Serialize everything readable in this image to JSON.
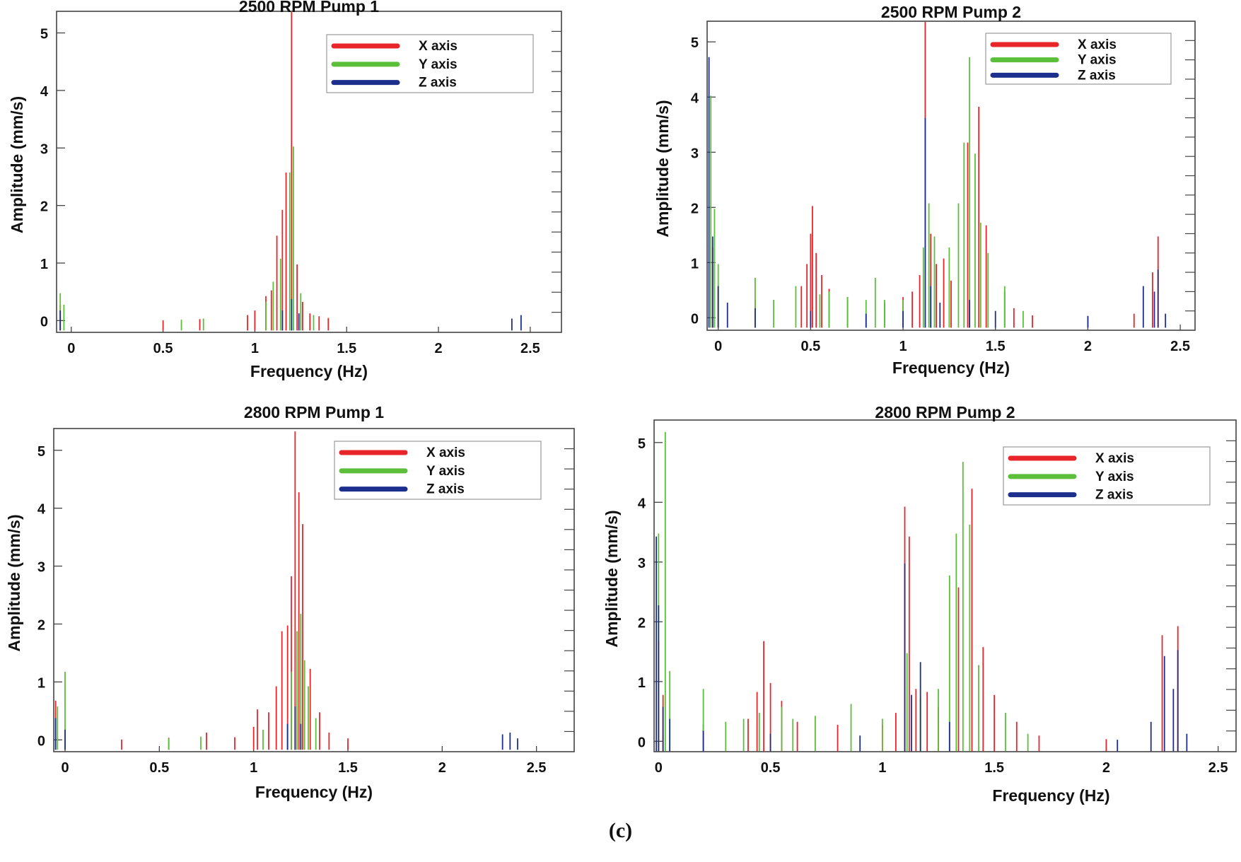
{
  "figure": {
    "caption": "(c)"
  },
  "colors": {
    "x_axis": "#e8262a",
    "y_axis": "#5cbf3a",
    "z_axis": "#1d2f8c",
    "frame": "#444444"
  },
  "chart_data": [
    {
      "type": "bar",
      "title": "2500 RPM Pump 1",
      "xlabel": "Frequency (Hz)",
      "ylabel": "Amplitude (mm/s)",
      "xlim": [
        -0.08,
        2.67
      ],
      "ylim": [
        -0.18,
        5.4
      ],
      "xticks": [
        "0",
        "0.5",
        "1",
        "1.5",
        "2",
        "2.5"
      ],
      "yticks": [
        "0",
        "1",
        "2",
        "3",
        "4",
        "5"
      ],
      "legend": {
        "position": "top-right",
        "entries": [
          "X axis",
          "Y axis",
          "Z axis"
        ]
      },
      "series": [
        {
          "name": "X axis",
          "color": "#e8262a",
          "points": [
            [
              -0.06,
              0.3
            ],
            [
              0.5,
              0.03
            ],
            [
              0.7,
              0.05
            ],
            [
              0.96,
              0.12
            ],
            [
              1.0,
              0.2
            ],
            [
              1.06,
              0.45
            ],
            [
              1.09,
              0.55
            ],
            [
              1.12,
              1.5
            ],
            [
              1.15,
              1.95
            ],
            [
              1.17,
              2.6
            ],
            [
              1.2,
              5.4
            ],
            [
              1.23,
              1.0
            ],
            [
              1.26,
              0.35
            ],
            [
              1.3,
              0.15
            ],
            [
              1.35,
              0.1
            ],
            [
              1.4,
              0.07
            ]
          ]
        },
        {
          "name": "Y axis",
          "color": "#5cbf3a",
          "points": [
            [
              -0.06,
              0.5
            ],
            [
              -0.04,
              0.3
            ],
            [
              0.6,
              0.04
            ],
            [
              0.72,
              0.06
            ],
            [
              1.06,
              0.35
            ],
            [
              1.1,
              0.7
            ],
            [
              1.14,
              1.1
            ],
            [
              1.19,
              2.6
            ],
            [
              1.21,
              3.05
            ],
            [
              1.25,
              0.5
            ],
            [
              1.32,
              0.12
            ]
          ]
        },
        {
          "name": "Z axis",
          "color": "#1d2f8c",
          "points": [
            [
              -0.06,
              0.2
            ],
            [
              1.15,
              0.2
            ],
            [
              1.2,
              0.4
            ],
            [
              1.24,
              0.15
            ],
            [
              2.4,
              0.06
            ],
            [
              2.45,
              0.12
            ]
          ]
        }
      ]
    },
    {
      "type": "bar",
      "title": "2500 RPM Pump 2",
      "xlabel": "Frequency (Hz)",
      "ylabel": "Amplitude (mm/s)",
      "xlim": [
        -0.06,
        2.58
      ],
      "ylim": [
        -0.2,
        5.4
      ],
      "xticks": [
        "0",
        "0.5",
        "1",
        "1.5",
        "2",
        "2.5"
      ],
      "yticks": [
        "0",
        "1",
        "2",
        "3",
        "4",
        "5"
      ],
      "legend": {
        "position": "top-right",
        "entries": [
          "X axis",
          "Y axis",
          "Z axis"
        ]
      },
      "series": [
        {
          "name": "X axis",
          "color": "#e8262a",
          "points": [
            [
              -0.03,
              1.3
            ],
            [
              0.0,
              0.6
            ],
            [
              0.2,
              0.35
            ],
            [
              0.45,
              0.6
            ],
            [
              0.48,
              1.0
            ],
            [
              0.5,
              1.55
            ],
            [
              0.51,
              2.05
            ],
            [
              0.53,
              1.2
            ],
            [
              0.56,
              0.8
            ],
            [
              0.6,
              0.55
            ],
            [
              0.7,
              0.4
            ],
            [
              0.9,
              0.3
            ],
            [
              1.0,
              0.4
            ],
            [
              1.05,
              0.5
            ],
            [
              1.09,
              0.8
            ],
            [
              1.12,
              5.4
            ],
            [
              1.15,
              1.55
            ],
            [
              1.18,
              1.0
            ],
            [
              1.22,
              1.1
            ],
            [
              1.26,
              0.7
            ],
            [
              1.35,
              3.2
            ],
            [
              1.41,
              3.85
            ],
            [
              1.45,
              1.7
            ],
            [
              1.55,
              0.5
            ],
            [
              1.6,
              0.2
            ],
            [
              1.7,
              0.07
            ],
            [
              2.0,
              0.05
            ],
            [
              2.25,
              0.1
            ],
            [
              2.35,
              0.85
            ],
            [
              2.38,
              1.5
            ]
          ]
        },
        {
          "name": "Y axis",
          "color": "#5cbf3a",
          "points": [
            [
              -0.04,
              4.05
            ],
            [
              -0.02,
              2.0
            ],
            [
              0.0,
              1.0
            ],
            [
              0.2,
              0.75
            ],
            [
              0.3,
              0.35
            ],
            [
              0.42,
              0.6
            ],
            [
              0.55,
              0.45
            ],
            [
              0.6,
              0.5
            ],
            [
              0.7,
              0.4
            ],
            [
              0.8,
              0.35
            ],
            [
              0.85,
              0.75
            ],
            [
              0.9,
              0.35
            ],
            [
              1.0,
              0.35
            ],
            [
              1.11,
              1.3
            ],
            [
              1.14,
              2.1
            ],
            [
              1.17,
              1.5
            ],
            [
              1.25,
              1.3
            ],
            [
              1.3,
              2.1
            ],
            [
              1.33,
              3.2
            ],
            [
              1.36,
              4.75
            ],
            [
              1.39,
              3.0
            ],
            [
              1.42,
              1.75
            ],
            [
              1.46,
              1.2
            ],
            [
              1.55,
              0.6
            ],
            [
              1.65,
              0.15
            ]
          ]
        },
        {
          "name": "Z axis",
          "color": "#1d2f8c",
          "points": [
            [
              -0.05,
              4.75
            ],
            [
              -0.03,
              1.5
            ],
            [
              0.0,
              0.6
            ],
            [
              0.05,
              0.3
            ],
            [
              0.2,
              0.2
            ],
            [
              0.5,
              0.15
            ],
            [
              0.8,
              0.1
            ],
            [
              1.0,
              0.15
            ],
            [
              1.12,
              3.65
            ],
            [
              1.15,
              0.6
            ],
            [
              1.2,
              0.3
            ],
            [
              1.36,
              0.35
            ],
            [
              1.5,
              0.15
            ],
            [
              2.0,
              0.06
            ],
            [
              2.3,
              0.6
            ],
            [
              2.36,
              0.5
            ],
            [
              2.38,
              0.9
            ],
            [
              2.42,
              0.1
            ]
          ]
        }
      ]
    },
    {
      "type": "bar",
      "title": "2800 RPM Pump 1",
      "xlabel": "Frequency (Hz)",
      "ylabel": "Amplitude (mm/s)",
      "xlim": [
        -0.06,
        2.7
      ],
      "ylim": [
        -0.18,
        5.4
      ],
      "xticks": [
        "0",
        "0.5",
        "1",
        "1.5",
        "2",
        "2.5"
      ],
      "yticks": [
        "0",
        "1",
        "2",
        "3",
        "4",
        "5"
      ],
      "legend": {
        "position": "top-right",
        "entries": [
          "X axis",
          "Y axis",
          "Z axis"
        ]
      },
      "series": [
        {
          "name": "X axis",
          "color": "#e8262a",
          "points": [
            [
              -0.05,
              0.7
            ],
            [
              0.3,
              0.03
            ],
            [
              0.55,
              0.06
            ],
            [
              0.75,
              0.15
            ],
            [
              0.9,
              0.07
            ],
            [
              1.0,
              0.25
            ],
            [
              1.02,
              0.55
            ],
            [
              1.08,
              0.5
            ],
            [
              1.12,
              0.95
            ],
            [
              1.15,
              1.9
            ],
            [
              1.18,
              2.0
            ],
            [
              1.2,
              2.85
            ],
            [
              1.22,
              5.35
            ],
            [
              1.24,
              4.3
            ],
            [
              1.26,
              3.75
            ],
            [
              1.3,
              1.25
            ],
            [
              1.35,
              0.5
            ],
            [
              1.4,
              0.15
            ],
            [
              1.5,
              0.05
            ]
          ]
        },
        {
          "name": "Y axis",
          "color": "#5cbf3a",
          "points": [
            [
              -0.04,
              0.6
            ],
            [
              0.0,
              1.2
            ],
            [
              0.55,
              0.05
            ],
            [
              0.72,
              0.08
            ],
            [
              1.05,
              0.2
            ],
            [
              1.2,
              1.2
            ],
            [
              1.23,
              1.9
            ],
            [
              1.25,
              2.2
            ],
            [
              1.27,
              1.4
            ],
            [
              1.29,
              0.95
            ],
            [
              1.33,
              0.4
            ]
          ]
        },
        {
          "name": "Z axis",
          "color": "#1d2f8c",
          "points": [
            [
              -0.05,
              0.4
            ],
            [
              0.0,
              0.2
            ],
            [
              1.18,
              0.3
            ],
            [
              1.22,
              0.6
            ],
            [
              1.25,
              0.3
            ],
            [
              2.32,
              0.12
            ],
            [
              2.36,
              0.15
            ],
            [
              2.4,
              0.05
            ]
          ]
        }
      ]
    },
    {
      "type": "bar",
      "title": "2800 RPM Pump 2",
      "xlabel": "Frequency (Hz)",
      "ylabel": "Amplitude (mm/s)",
      "xlim": [
        -0.02,
        2.58
      ],
      "ylim": [
        -0.15,
        5.4
      ],
      "xticks": [
        "0",
        "0.5",
        "1",
        "1.5",
        "2",
        "2.5"
      ],
      "yticks": [
        "0",
        "1",
        "2",
        "3",
        "4",
        "5"
      ],
      "legend": {
        "position": "top-right",
        "entries": [
          "X axis",
          "Y axis",
          "Z axis"
        ]
      },
      "series": [
        {
          "name": "X axis",
          "color": "#e8262a",
          "points": [
            [
              0.0,
              1.7
            ],
            [
              0.02,
              0.8
            ],
            [
              0.2,
              0.3
            ],
            [
              0.4,
              0.4
            ],
            [
              0.44,
              0.85
            ],
            [
              0.47,
              1.7
            ],
            [
              0.5,
              1.0
            ],
            [
              0.55,
              0.7
            ],
            [
              0.62,
              0.35
            ],
            [
              0.8,
              0.3
            ],
            [
              1.0,
              0.3
            ],
            [
              1.06,
              0.5
            ],
            [
              1.1,
              3.95
            ],
            [
              1.12,
              3.45
            ],
            [
              1.15,
              0.9
            ],
            [
              1.2,
              0.85
            ],
            [
              1.25,
              0.6
            ],
            [
              1.34,
              2.6
            ],
            [
              1.4,
              4.25
            ],
            [
              1.45,
              1.6
            ],
            [
              1.5,
              0.8
            ],
            [
              1.6,
              0.35
            ],
            [
              1.7,
              0.12
            ],
            [
              2.0,
              0.06
            ],
            [
              2.25,
              1.8
            ],
            [
              2.32,
              1.95
            ]
          ]
        },
        {
          "name": "Y axis",
          "color": "#5cbf3a",
          "points": [
            [
              0.0,
              3.5
            ],
            [
              0.03,
              5.2
            ],
            [
              0.05,
              1.2
            ],
            [
              0.2,
              0.9
            ],
            [
              0.3,
              0.35
            ],
            [
              0.38,
              0.4
            ],
            [
              0.45,
              0.5
            ],
            [
              0.55,
              0.6
            ],
            [
              0.6,
              0.4
            ],
            [
              0.7,
              0.45
            ],
            [
              0.86,
              0.65
            ],
            [
              1.0,
              0.4
            ],
            [
              1.11,
              1.5
            ],
            [
              1.17,
              0.75
            ],
            [
              1.25,
              0.9
            ],
            [
              1.3,
              2.8
            ],
            [
              1.33,
              3.5
            ],
            [
              1.36,
              4.7
            ],
            [
              1.39,
              3.65
            ],
            [
              1.43,
              1.3
            ],
            [
              1.55,
              0.5
            ],
            [
              1.65,
              0.15
            ]
          ]
        },
        {
          "name": "Z axis",
          "color": "#1d2f8c",
          "points": [
            [
              -0.01,
              3.45
            ],
            [
              0.0,
              2.3
            ],
            [
              0.02,
              0.6
            ],
            [
              0.05,
              0.4
            ],
            [
              0.2,
              0.2
            ],
            [
              0.5,
              0.15
            ],
            [
              0.9,
              0.12
            ],
            [
              1.1,
              3.0
            ],
            [
              1.13,
              0.8
            ],
            [
              1.17,
              1.35
            ],
            [
              1.3,
              0.35
            ],
            [
              2.05,
              0.05
            ],
            [
              2.2,
              0.35
            ],
            [
              2.26,
              1.45
            ],
            [
              2.3,
              0.9
            ],
            [
              2.32,
              1.55
            ],
            [
              2.36,
              0.15
            ]
          ]
        }
      ]
    }
  ]
}
